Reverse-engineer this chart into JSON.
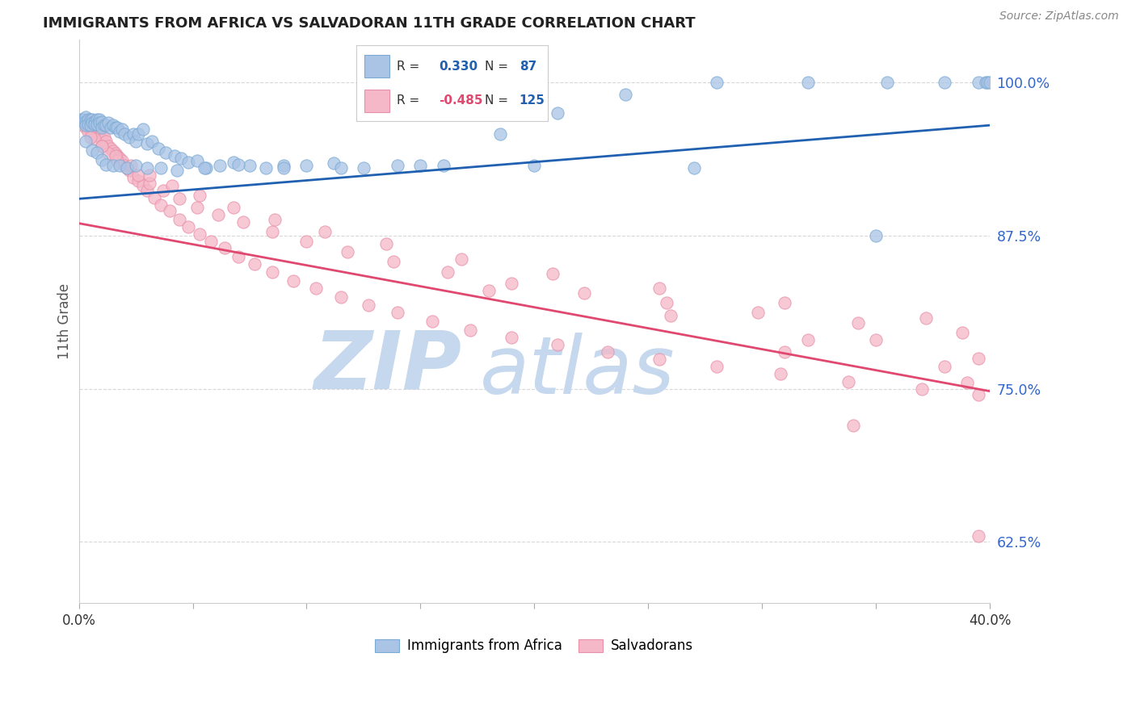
{
  "title": "IMMIGRANTS FROM AFRICA VS SALVADORAN 11TH GRADE CORRELATION CHART",
  "source": "Source: ZipAtlas.com",
  "ylabel": "11th Grade",
  "ytick_labels": [
    "100.0%",
    "87.5%",
    "75.0%",
    "62.5%"
  ],
  "ytick_values": [
    1.0,
    0.875,
    0.75,
    0.625
  ],
  "legend_label_blue": "Immigrants from Africa",
  "legend_label_pink": "Salvadorans",
  "blue_color": "#aac4e6",
  "pink_color": "#f4b8c8",
  "blue_edge_color": "#7aaad4",
  "pink_edge_color": "#e890aa",
  "blue_line_color": "#2060b0",
  "pink_line_color": "#e04870",
  "title_color": "#222222",
  "axis_label_color": "#555555",
  "ytick_color": "#3366cc",
  "grid_color": "#d8d8d8",
  "background_color": "#ffffff",
  "watermark_zip_color": "#c5d8ee",
  "watermark_atlas_color": "#c5d8ee",
  "xmin": 0.0,
  "xmax": 0.4,
  "ymin": 0.575,
  "ymax": 1.035,
  "blue_trendline_x": [
    0.0,
    0.4
  ],
  "blue_trendline_y": [
    0.905,
    0.965
  ],
  "pink_trendline_x": [
    0.0,
    0.4
  ],
  "pink_trendline_y": [
    0.885,
    0.748
  ],
  "blue_points_x": [
    0.001,
    0.002,
    0.002,
    0.003,
    0.003,
    0.003,
    0.004,
    0.004,
    0.005,
    0.005,
    0.006,
    0.006,
    0.007,
    0.007,
    0.008,
    0.008,
    0.009,
    0.009,
    0.01,
    0.01,
    0.011,
    0.012,
    0.013,
    0.014,
    0.015,
    0.016,
    0.017,
    0.018,
    0.019,
    0.02,
    0.022,
    0.024,
    0.025,
    0.026,
    0.028,
    0.03,
    0.032,
    0.035,
    0.038,
    0.042,
    0.045,
    0.048,
    0.052,
    0.056,
    0.062,
    0.068,
    0.075,
    0.082,
    0.09,
    0.1,
    0.112,
    0.125,
    0.14,
    0.16,
    0.185,
    0.21,
    0.24,
    0.28,
    0.32,
    0.355,
    0.38,
    0.395,
    0.398,
    0.399,
    0.4,
    0.003,
    0.006,
    0.008,
    0.01,
    0.012,
    0.015,
    0.018,
    0.021,
    0.025,
    0.03,
    0.036,
    0.043,
    0.055,
    0.07,
    0.09,
    0.115,
    0.15,
    0.2,
    0.27,
    0.35
  ],
  "blue_points_y": [
    0.97,
    0.97,
    0.968,
    0.972,
    0.968,
    0.965,
    0.97,
    0.966,
    0.97,
    0.965,
    0.97,
    0.967,
    0.968,
    0.966,
    0.97,
    0.966,
    0.97,
    0.967,
    0.968,
    0.963,
    0.965,
    0.965,
    0.967,
    0.963,
    0.965,
    0.963,
    0.963,
    0.96,
    0.962,
    0.958,
    0.955,
    0.958,
    0.952,
    0.958,
    0.962,
    0.95,
    0.952,
    0.946,
    0.943,
    0.94,
    0.938,
    0.935,
    0.936,
    0.93,
    0.932,
    0.935,
    0.932,
    0.93,
    0.932,
    0.932,
    0.934,
    0.93,
    0.932,
    0.932,
    0.958,
    0.975,
    0.99,
    1.0,
    1.0,
    1.0,
    1.0,
    1.0,
    1.0,
    1.0,
    1.0,
    0.952,
    0.945,
    0.943,
    0.937,
    0.933,
    0.932,
    0.932,
    0.93,
    0.932,
    0.93,
    0.93,
    0.928,
    0.93,
    0.933,
    0.93,
    0.93,
    0.932,
    0.932,
    0.93,
    0.875
  ],
  "pink_points_x": [
    0.001,
    0.002,
    0.002,
    0.003,
    0.003,
    0.004,
    0.004,
    0.005,
    0.005,
    0.006,
    0.006,
    0.007,
    0.007,
    0.008,
    0.008,
    0.009,
    0.009,
    0.01,
    0.01,
    0.011,
    0.012,
    0.013,
    0.014,
    0.015,
    0.016,
    0.017,
    0.018,
    0.019,
    0.02,
    0.022,
    0.024,
    0.026,
    0.028,
    0.03,
    0.033,
    0.036,
    0.04,
    0.044,
    0.048,
    0.053,
    0.058,
    0.064,
    0.07,
    0.077,
    0.085,
    0.094,
    0.104,
    0.115,
    0.127,
    0.14,
    0.155,
    0.172,
    0.19,
    0.21,
    0.232,
    0.255,
    0.28,
    0.308,
    0.338,
    0.37,
    0.395,
    0.004,
    0.007,
    0.01,
    0.013,
    0.017,
    0.021,
    0.026,
    0.031,
    0.037,
    0.044,
    0.052,
    0.061,
    0.072,
    0.085,
    0.1,
    0.118,
    0.138,
    0.162,
    0.19,
    0.222,
    0.258,
    0.298,
    0.342,
    0.388,
    0.005,
    0.01,
    0.016,
    0.023,
    0.031,
    0.041,
    0.053,
    0.068,
    0.086,
    0.108,
    0.135,
    0.168,
    0.208,
    0.255,
    0.31,
    0.372,
    0.18,
    0.26,
    0.35,
    0.395,
    0.32,
    0.38,
    0.31,
    0.39,
    0.34,
    0.395
  ],
  "pink_points_y": [
    0.968,
    0.97,
    0.965,
    0.968,
    0.963,
    0.968,
    0.964,
    0.966,
    0.962,
    0.965,
    0.96,
    0.963,
    0.958,
    0.962,
    0.958,
    0.96,
    0.956,
    0.958,
    0.953,
    0.955,
    0.952,
    0.948,
    0.946,
    0.944,
    0.942,
    0.94,
    0.938,
    0.936,
    0.932,
    0.928,
    0.922,
    0.92,
    0.916,
    0.912,
    0.906,
    0.9,
    0.895,
    0.888,
    0.882,
    0.876,
    0.87,
    0.865,
    0.858,
    0.852,
    0.845,
    0.838,
    0.832,
    0.825,
    0.818,
    0.812,
    0.805,
    0.798,
    0.792,
    0.786,
    0.78,
    0.774,
    0.768,
    0.762,
    0.756,
    0.75,
    0.745,
    0.96,
    0.954,
    0.948,
    0.942,
    0.936,
    0.93,
    0.924,
    0.918,
    0.912,
    0.905,
    0.898,
    0.892,
    0.886,
    0.878,
    0.87,
    0.862,
    0.854,
    0.845,
    0.836,
    0.828,
    0.82,
    0.812,
    0.804,
    0.796,
    0.955,
    0.948,
    0.94,
    0.932,
    0.924,
    0.916,
    0.908,
    0.898,
    0.888,
    0.878,
    0.868,
    0.856,
    0.844,
    0.832,
    0.82,
    0.808,
    0.83,
    0.81,
    0.79,
    0.775,
    0.79,
    0.768,
    0.78,
    0.755,
    0.72,
    0.63
  ]
}
